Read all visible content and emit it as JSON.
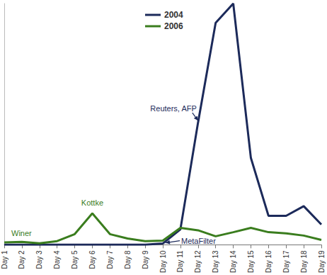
{
  "chart_data": {
    "type": "line",
    "categories": [
      "Day 1",
      "Day 2",
      "Day 3",
      "Day 4",
      "Day 5",
      "Day 6",
      "Day 7",
      "Day 8",
      "Day 9",
      "Day 10",
      "Day 11",
      "Day 12",
      "Day 13",
      "Day 14",
      "Day 15",
      "Day 16",
      "Day 17",
      "Day 18",
      "Day 19"
    ],
    "series": [
      {
        "name": "2004",
        "color": "#1c2a5a",
        "values": [
          0,
          0,
          0,
          0,
          0,
          0,
          0,
          0,
          0,
          0.5,
          6.4,
          50.6,
          92,
          100,
          36,
          12,
          12,
          16,
          8.4
        ]
      },
      {
        "name": "2006",
        "color": "#3a7d1e",
        "values": [
          1,
          1.2,
          0.6,
          1.5,
          4.4,
          13,
          4.4,
          2.6,
          1.5,
          1.7,
          7,
          6,
          3.5,
          5.2,
          7,
          5.2,
          4.7,
          3.8,
          2
        ]
      }
    ],
    "annotations": [
      {
        "text": "Winer",
        "series": "2006",
        "x": "Day 1"
      },
      {
        "text": "Kottke",
        "series": "2006",
        "x": "Day 6"
      },
      {
        "text": "MetaFilter",
        "series": "2004",
        "x": "Day 10"
      },
      {
        "text": "Reuters, AFP",
        "series": "2004",
        "x": "Day 12"
      }
    ],
    "ylim": [
      0,
      100
    ],
    "grid": false,
    "legend": "top",
    "tick_labels": "x"
  }
}
